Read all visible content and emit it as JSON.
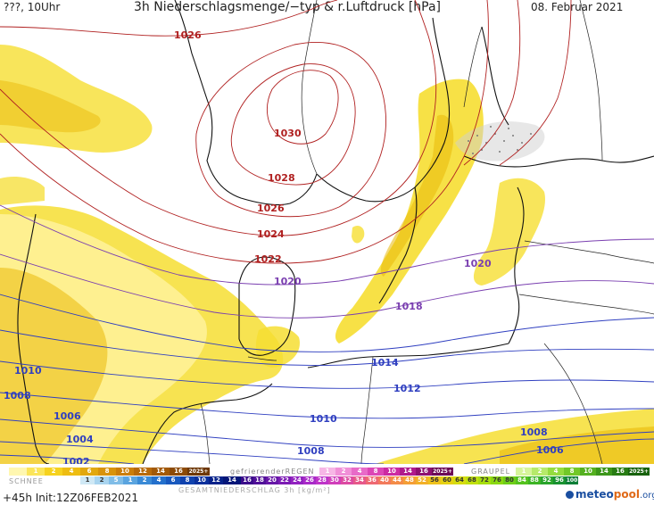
{
  "header": {
    "left": "???, 10Uhr",
    "center": "3h Niederschlagsmenge/−typ & r.Luftdruck [hPa]",
    "right": "08. Februar 2021"
  },
  "isobars_red": [
    "1026",
    "1030",
    "1028",
    "1026",
    "1024",
    "1022"
  ],
  "isobars_purple": [
    "1020",
    "1020",
    "1018"
  ],
  "isobars_blue": [
    "1014",
    "1012",
    "1010",
    "1010",
    "1008",
    "1008",
    "1006",
    "1004",
    "1002",
    "1008",
    "1006"
  ],
  "legend": {
    "regen_values": [
      "1",
      "2",
      "4",
      "6",
      "8",
      "10",
      "12",
      "14",
      "16",
      "18",
      "2025+"
    ],
    "freezing_label": "gefrierenderREGEN",
    "freezing_values": [
      "1",
      "2",
      "4",
      "8",
      "10",
      "14",
      "16",
      "2025+"
    ],
    "graupel_label": "GRAUPEL",
    "graupel_values": [
      "1",
      "2",
      "4",
      "8",
      "10",
      "14",
      "16",
      "2025+"
    ],
    "schnee_label": "SCHNEE",
    "schnee_values": [
      "1",
      "2",
      "5",
      "1",
      "2",
      "4",
      "6",
      "8",
      "10",
      "12",
      "14"
    ],
    "total_values": [
      "16",
      "18",
      "20",
      "22",
      "24",
      "26",
      "28",
      "30",
      "32",
      "34",
      "36",
      "40",
      "44",
      "48",
      "52",
      "56",
      "60",
      "64",
      "68",
      "72",
      "76",
      "80",
      "84",
      "88",
      "92",
      "96",
      "100"
    ],
    "total_label": "GESAMTNIEDERSCHLAG 3h [kg/m²]"
  },
  "footer": {
    "run": "+45h Init:12Z06FEB2021",
    "logo_main": "meteo",
    "logo_mid": "pool",
    "logo_tld": ".org"
  },
  "colors": {
    "rain_light": "#fff4a8",
    "rain": "#f6de32",
    "rain_heavy": "#e9b90a",
    "snow_dots": "#7a7a7a",
    "isobar_high": "#b02020",
    "isobar_mid": "#7a3fb0",
    "isobar_low": "#2f3fc0"
  }
}
